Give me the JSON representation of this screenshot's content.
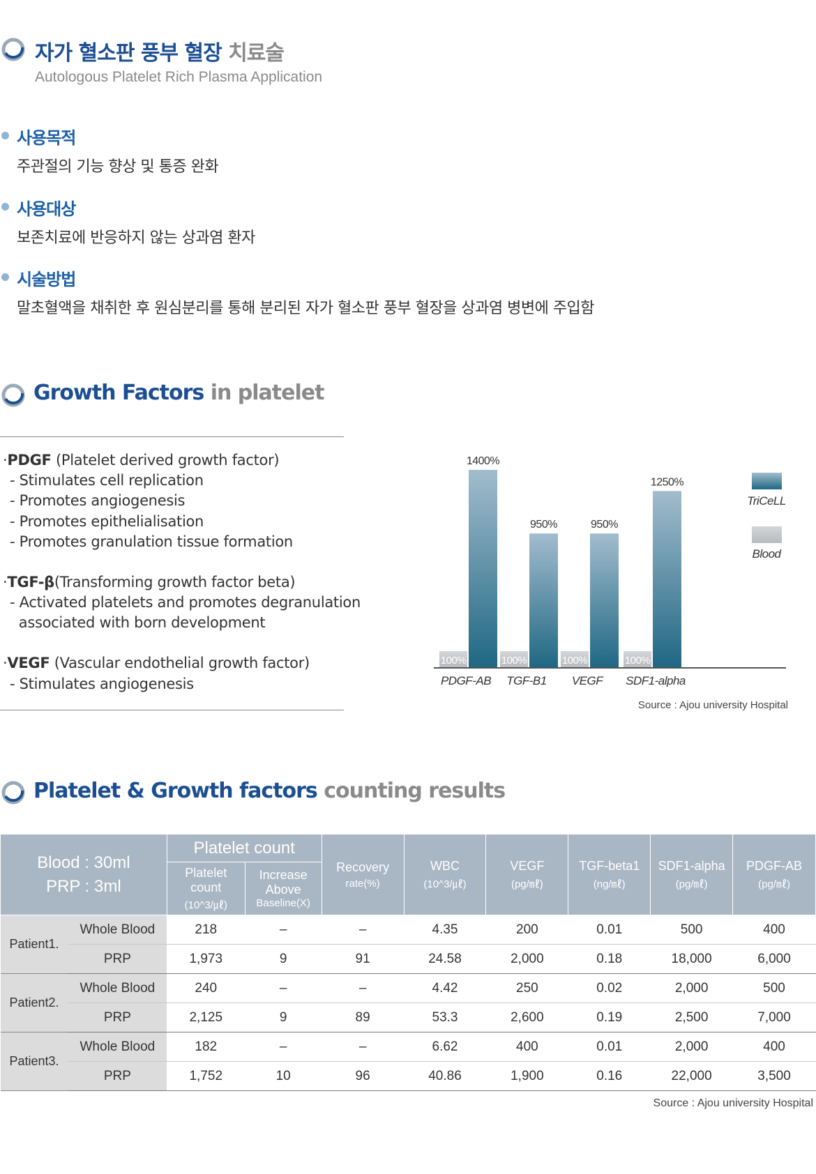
{
  "section1": {
    "title_blue": "자가 혈소판 풍부 혈장",
    "title_gray": "치료술",
    "subtitle": "Autologous Platelet Rich Plasma Application",
    "items": [
      {
        "head": "사용목적",
        "text": "주관절의 기능 향상 및 통증 완화"
      },
      {
        "head": "사용대상",
        "text": "보존치료에 반응하지 않는 상과염 환자"
      },
      {
        "head": "시술방법",
        "text": "말초혈액을 채취한 후 원심분리를 통해 분리된 자가 혈소판 풍부 혈장을 상과염 병변에 주입함"
      }
    ]
  },
  "section2": {
    "title_blue": "Growth Factors",
    "title_gray": "in platelet",
    "factors": [
      {
        "name": "PDGF",
        "desc": "(Platelet derived growth factor)",
        "points": [
          "- Stimulates cell replication",
          "- Promotes angiogenesis",
          "- Promotes epithelialisation",
          "- Promotes granulation tissue formation"
        ]
      },
      {
        "name": "TGF-β",
        "desc": "(Transforming growth factor beta)",
        "points": [
          "- Activated platelets and promotes degranulation",
          "  associated with born development"
        ]
      },
      {
        "name": "VEGF",
        "desc": "(Vascular endothelial growth factor)",
        "points": [
          "- Stimulates angiogenesis"
        ]
      }
    ],
    "source": "Source : Ajou university Hospital"
  },
  "chart_data": {
    "type": "bar",
    "categories": [
      "PDGF-AB",
      "TGF-B1",
      "VEGF",
      "SDF1-alpha"
    ],
    "series": [
      {
        "name": "TriCeLL",
        "values": [
          1400,
          950,
          950,
          1250
        ],
        "labels": [
          "1400%",
          "950%",
          "950%",
          "1250%"
        ],
        "color": "#2e6d8a"
      },
      {
        "name": "Blood",
        "values": [
          100,
          100,
          100,
          100
        ],
        "labels": [
          "100%",
          "100%",
          "100%",
          "100%"
        ],
        "color": "#c4c6c9"
      }
    ],
    "ylim": [
      0,
      1500
    ],
    "grid": false,
    "legend": "right"
  },
  "section3": {
    "title_blue": "Platelet & Growth factors",
    "title_gray": "counting results",
    "header": {
      "blood": "Blood : 30ml",
      "prp": "PRP : 3ml",
      "platelet_count": "Platelet count",
      "pc_count_1": "Platelet",
      "pc_count_2": "count",
      "pc_count_3": "(10^3/㎕)",
      "pc_inc_1": "Increase",
      "pc_inc_2": "Above",
      "pc_inc_3": "Baseline(X)",
      "recovery_1": "Recovery",
      "recovery_2": "rate(%)",
      "wbc_1": "WBC",
      "wbc_2": "(10^3/㎕)",
      "vegf_1": "VEGF",
      "vegf_2": "(pg/㎖)",
      "tgf_1": "TGF-beta1",
      "tgf_2": "(ng/㎖)",
      "sdf_1": "SDF1-alpha",
      "sdf_2": "(pg/㎖)",
      "pdgf_1": "PDGF-AB",
      "pdgf_2": "(pg/㎖)"
    },
    "patients": [
      {
        "name": "Patient1.",
        "rows": [
          {
            "kind": "Whole Blood",
            "vals": [
              "218",
              "–",
              "–",
              "4.35",
              "200",
              "0.01",
              "500",
              "400"
            ]
          },
          {
            "kind": "PRP",
            "vals": [
              "1,973",
              "9",
              "91",
              "24.58",
              "2,000",
              "0.18",
              "18,000",
              "6,000"
            ]
          }
        ]
      },
      {
        "name": "Patient2.",
        "rows": [
          {
            "kind": "Whole Blood",
            "vals": [
              "240",
              "–",
              "–",
              "4.42",
              "250",
              "0.02",
              "2,000",
              "500"
            ]
          },
          {
            "kind": "PRP",
            "vals": [
              "2,125",
              "9",
              "89",
              "53.3",
              "2,600",
              "0.19",
              "2,500",
              "7,000"
            ]
          }
        ]
      },
      {
        "name": "Patient3.",
        "rows": [
          {
            "kind": "Whole Blood",
            "vals": [
              "182",
              "–",
              "–",
              "6.62",
              "400",
              "0.01",
              "2,000",
              "400"
            ]
          },
          {
            "kind": "PRP",
            "vals": [
              "1,752",
              "10",
              "96",
              "40.86",
              "1,900",
              "0.16",
              "22,000",
              "3,500"
            ]
          }
        ]
      }
    ],
    "source": "Source : Ajou university Hospital"
  }
}
